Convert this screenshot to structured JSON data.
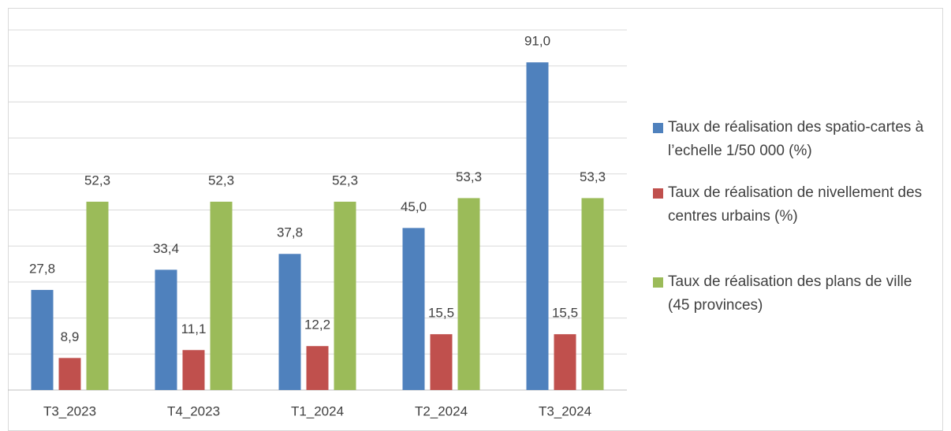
{
  "chart_data": {
    "type": "bar",
    "categories": [
      "T3_2023",
      "T4_2023",
      "T1_2024",
      "T2_2024",
      "T3_2024"
    ],
    "series": [
      {
        "name": "Taux  de réalisation des spatio-cartes à l’echelle 1/50 000 (%)",
        "color": "#4f81bd",
        "values": [
          27.8,
          33.4,
          37.8,
          45.0,
          91.0
        ],
        "value_labels": [
          "27,8",
          "33,4",
          "37,8",
          "45,0",
          "91,0"
        ]
      },
      {
        "name": "Taux de réalisation de nivellement des centres urbains (%)",
        "color": "#c0504d",
        "values": [
          8.9,
          11.1,
          12.2,
          15.5,
          15.5
        ],
        "value_labels": [
          "8,9",
          "11,1",
          "12,2",
          "15,5",
          "15,5"
        ]
      },
      {
        "name": "Taux de réalisation des plans de ville (45 provinces)",
        "color": "#9bbb59",
        "values": [
          52.3,
          52.3,
          52.3,
          53.3,
          53.3
        ],
        "value_labels": [
          "52,3",
          "52,3",
          "52,3",
          "53,3",
          "53,3"
        ]
      }
    ],
    "ylim": [
      0,
      100
    ],
    "yticks": [
      0,
      10,
      20,
      30,
      40,
      50,
      60,
      70,
      80,
      90,
      100
    ],
    "grid": true,
    "legend": "right"
  }
}
